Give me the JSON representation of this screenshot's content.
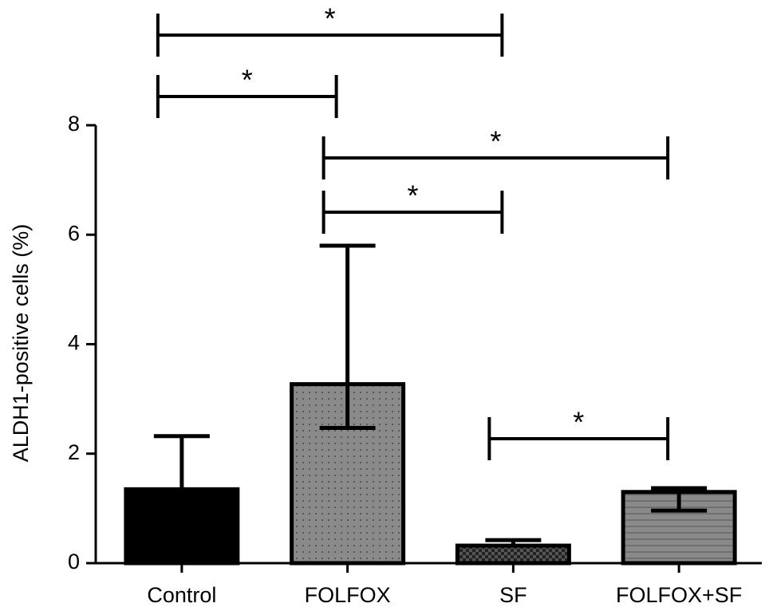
{
  "chart_data": {
    "type": "bar",
    "y_label": "ALDH1-positive cells (%)",
    "categories": [
      "Control",
      "FOLFOX",
      "SF",
      "FOLFOX+SF"
    ],
    "values": [
      1.35,
      3.27,
      0.32,
      1.3
    ],
    "errors_up": [
      0.97,
      2.53,
      0.1,
      0.07
    ],
    "errors_down": [
      null,
      0.8,
      null,
      0.34
    ],
    "colors": [
      "#000000",
      "#8a8a8a",
      "#555555",
      "#8a8a8a"
    ],
    "patterns": [
      "solid",
      "dots",
      "checker",
      "stripes"
    ],
    "ylim": [
      0,
      8
    ],
    "yticks": [
      0,
      2,
      4,
      6,
      8
    ],
    "grid": false,
    "significance": [
      {
        "from": 0,
        "to": 2,
        "label": "*"
      },
      {
        "from": 0,
        "to": 1,
        "label": "*"
      },
      {
        "from": 1,
        "to": 3,
        "label": "*"
      },
      {
        "from": 1,
        "to": 2,
        "label": "*"
      },
      {
        "from": 2,
        "to": 3,
        "label": "*"
      }
    ]
  }
}
